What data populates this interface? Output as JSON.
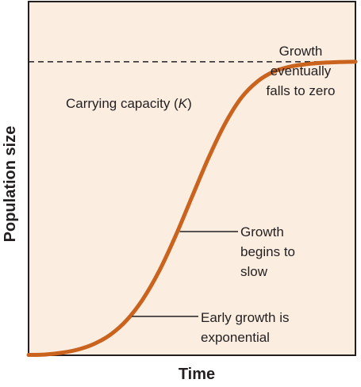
{
  "chart_data": {
    "type": "line",
    "title": "",
    "xlabel": "Time",
    "ylabel": "Population size",
    "grid": false,
    "legend": "none",
    "ticks": "none",
    "xlim": [
      0,
      1
    ],
    "ylim": [
      0,
      1
    ],
    "carrying_capacity": {
      "value": 0.83,
      "label_prefix": "Carrying capacity (",
      "label_symbol": "K",
      "label_suffix": ")"
    },
    "series": [
      {
        "values_note": "logistic curve (shape only, axes unlabelled)",
        "x": [
          0.0,
          0.05,
          0.1,
          0.15,
          0.2,
          0.25,
          0.3,
          0.35,
          0.4,
          0.45,
          0.5,
          0.55,
          0.6,
          0.65,
          0.7,
          0.75,
          0.8,
          0.85,
          0.9,
          0.95,
          1.0
        ],
        "y": [
          0.001,
          0.002,
          0.007,
          0.016,
          0.032,
          0.058,
          0.099,
          0.159,
          0.239,
          0.338,
          0.448,
          0.557,
          0.653,
          0.727,
          0.774,
          0.802,
          0.816,
          0.823,
          0.827,
          0.829,
          0.83
        ]
      }
    ],
    "annotations": [
      {
        "lines": [
          "Growth",
          "eventually",
          "falls to zero"
        ]
      },
      {
        "lines": [
          "Growth",
          "begins to",
          "slow"
        ]
      },
      {
        "lines": [
          "Early growth is",
          "exponential"
        ]
      }
    ]
  },
  "colors": {
    "background": "#fbeee1",
    "curve": "#c9631e",
    "text": "#231f20",
    "axis": "#231f20"
  }
}
